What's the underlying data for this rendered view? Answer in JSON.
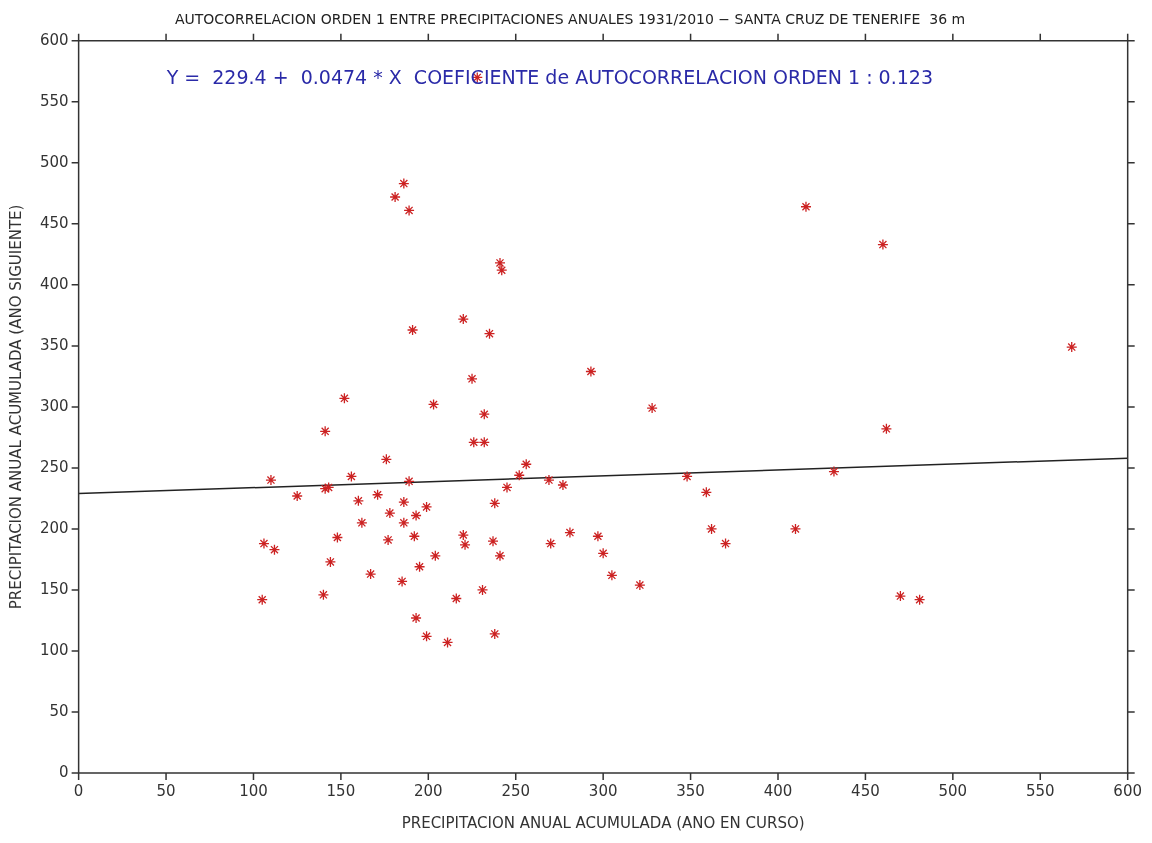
{
  "chart_data": {
    "type": "scatter",
    "title": "AUTOCORRELACION ORDEN 1 ENTRE PRECIPITACIONES ANUALES 1931/2010 − SANTA CRUZ DE TENERIFE  36 m",
    "xlabel": "PRECIPITACION ANUAL ACUMULADA (ANO EN CURSO)",
    "ylabel": "PRECIPITACION ANUAL ACUMULADA (ANO SIGUIENTE)",
    "annotations": [
      "Y =  229.4 +  0.0474 * X  COEFICIENTE de AUTOCORRELACION ORDEN 1 : 0.123"
    ],
    "xlim": [
      0,
      600
    ],
    "xticks": [
      0,
      50,
      100,
      150,
      200,
      250,
      300,
      350,
      400,
      450,
      500,
      550,
      600
    ],
    "ylim": [
      0,
      600
    ],
    "yticks": [
      0,
      50,
      100,
      150,
      200,
      250,
      300,
      350,
      400,
      450,
      500,
      550,
      600
    ],
    "grid": false,
    "legend": false,
    "marker": "cross",
    "series": [
      {
        "color": "#cc2222",
        "x": [
          105,
          106,
          110,
          112,
          125,
          140,
          141,
          141,
          143,
          144,
          148,
          152,
          156,
          160,
          162,
          167,
          171,
          176,
          177,
          178,
          181,
          185,
          186,
          186,
          186,
          189,
          189,
          191,
          192,
          193,
          193,
          195,
          199,
          199,
          204,
          203,
          211,
          216,
          220,
          220,
          221,
          225,
          226,
          228,
          231,
          232,
          232,
          235,
          237,
          238,
          238,
          241,
          242,
          241,
          245,
          252,
          256,
          269,
          270,
          277,
          281,
          293,
          297,
          300,
          305,
          321,
          328,
          348,
          359,
          362,
          370,
          410,
          416,
          432,
          460,
          462,
          470,
          481,
          568
        ],
        "values": [
          142,
          188,
          240,
          183,
          227,
          146,
          280,
          233,
          234,
          173,
          193,
          307,
          243,
          223,
          205,
          163,
          228,
          257,
          191,
          213,
          472,
          157,
          222,
          483,
          205,
          461,
          239,
          363,
          194,
          211,
          127,
          169,
          112,
          218,
          178,
          302,
          107,
          143,
          195,
          372,
          187,
          323,
          271,
          570,
          150,
          294,
          271,
          360,
          190,
          114,
          221,
          418,
          412,
          178,
          234,
          244,
          253,
          240,
          188,
          236,
          197,
          329,
          194,
          180,
          162,
          154,
          299,
          243,
          230,
          200,
          188,
          200,
          464,
          247,
          433,
          282,
          145,
          142,
          349
        ]
      },
      {
        "type": "line",
        "color": "#222222",
        "marker": "none",
        "x": [
          0,
          600
        ],
        "values": [
          229,
          258
        ]
      }
    ]
  }
}
